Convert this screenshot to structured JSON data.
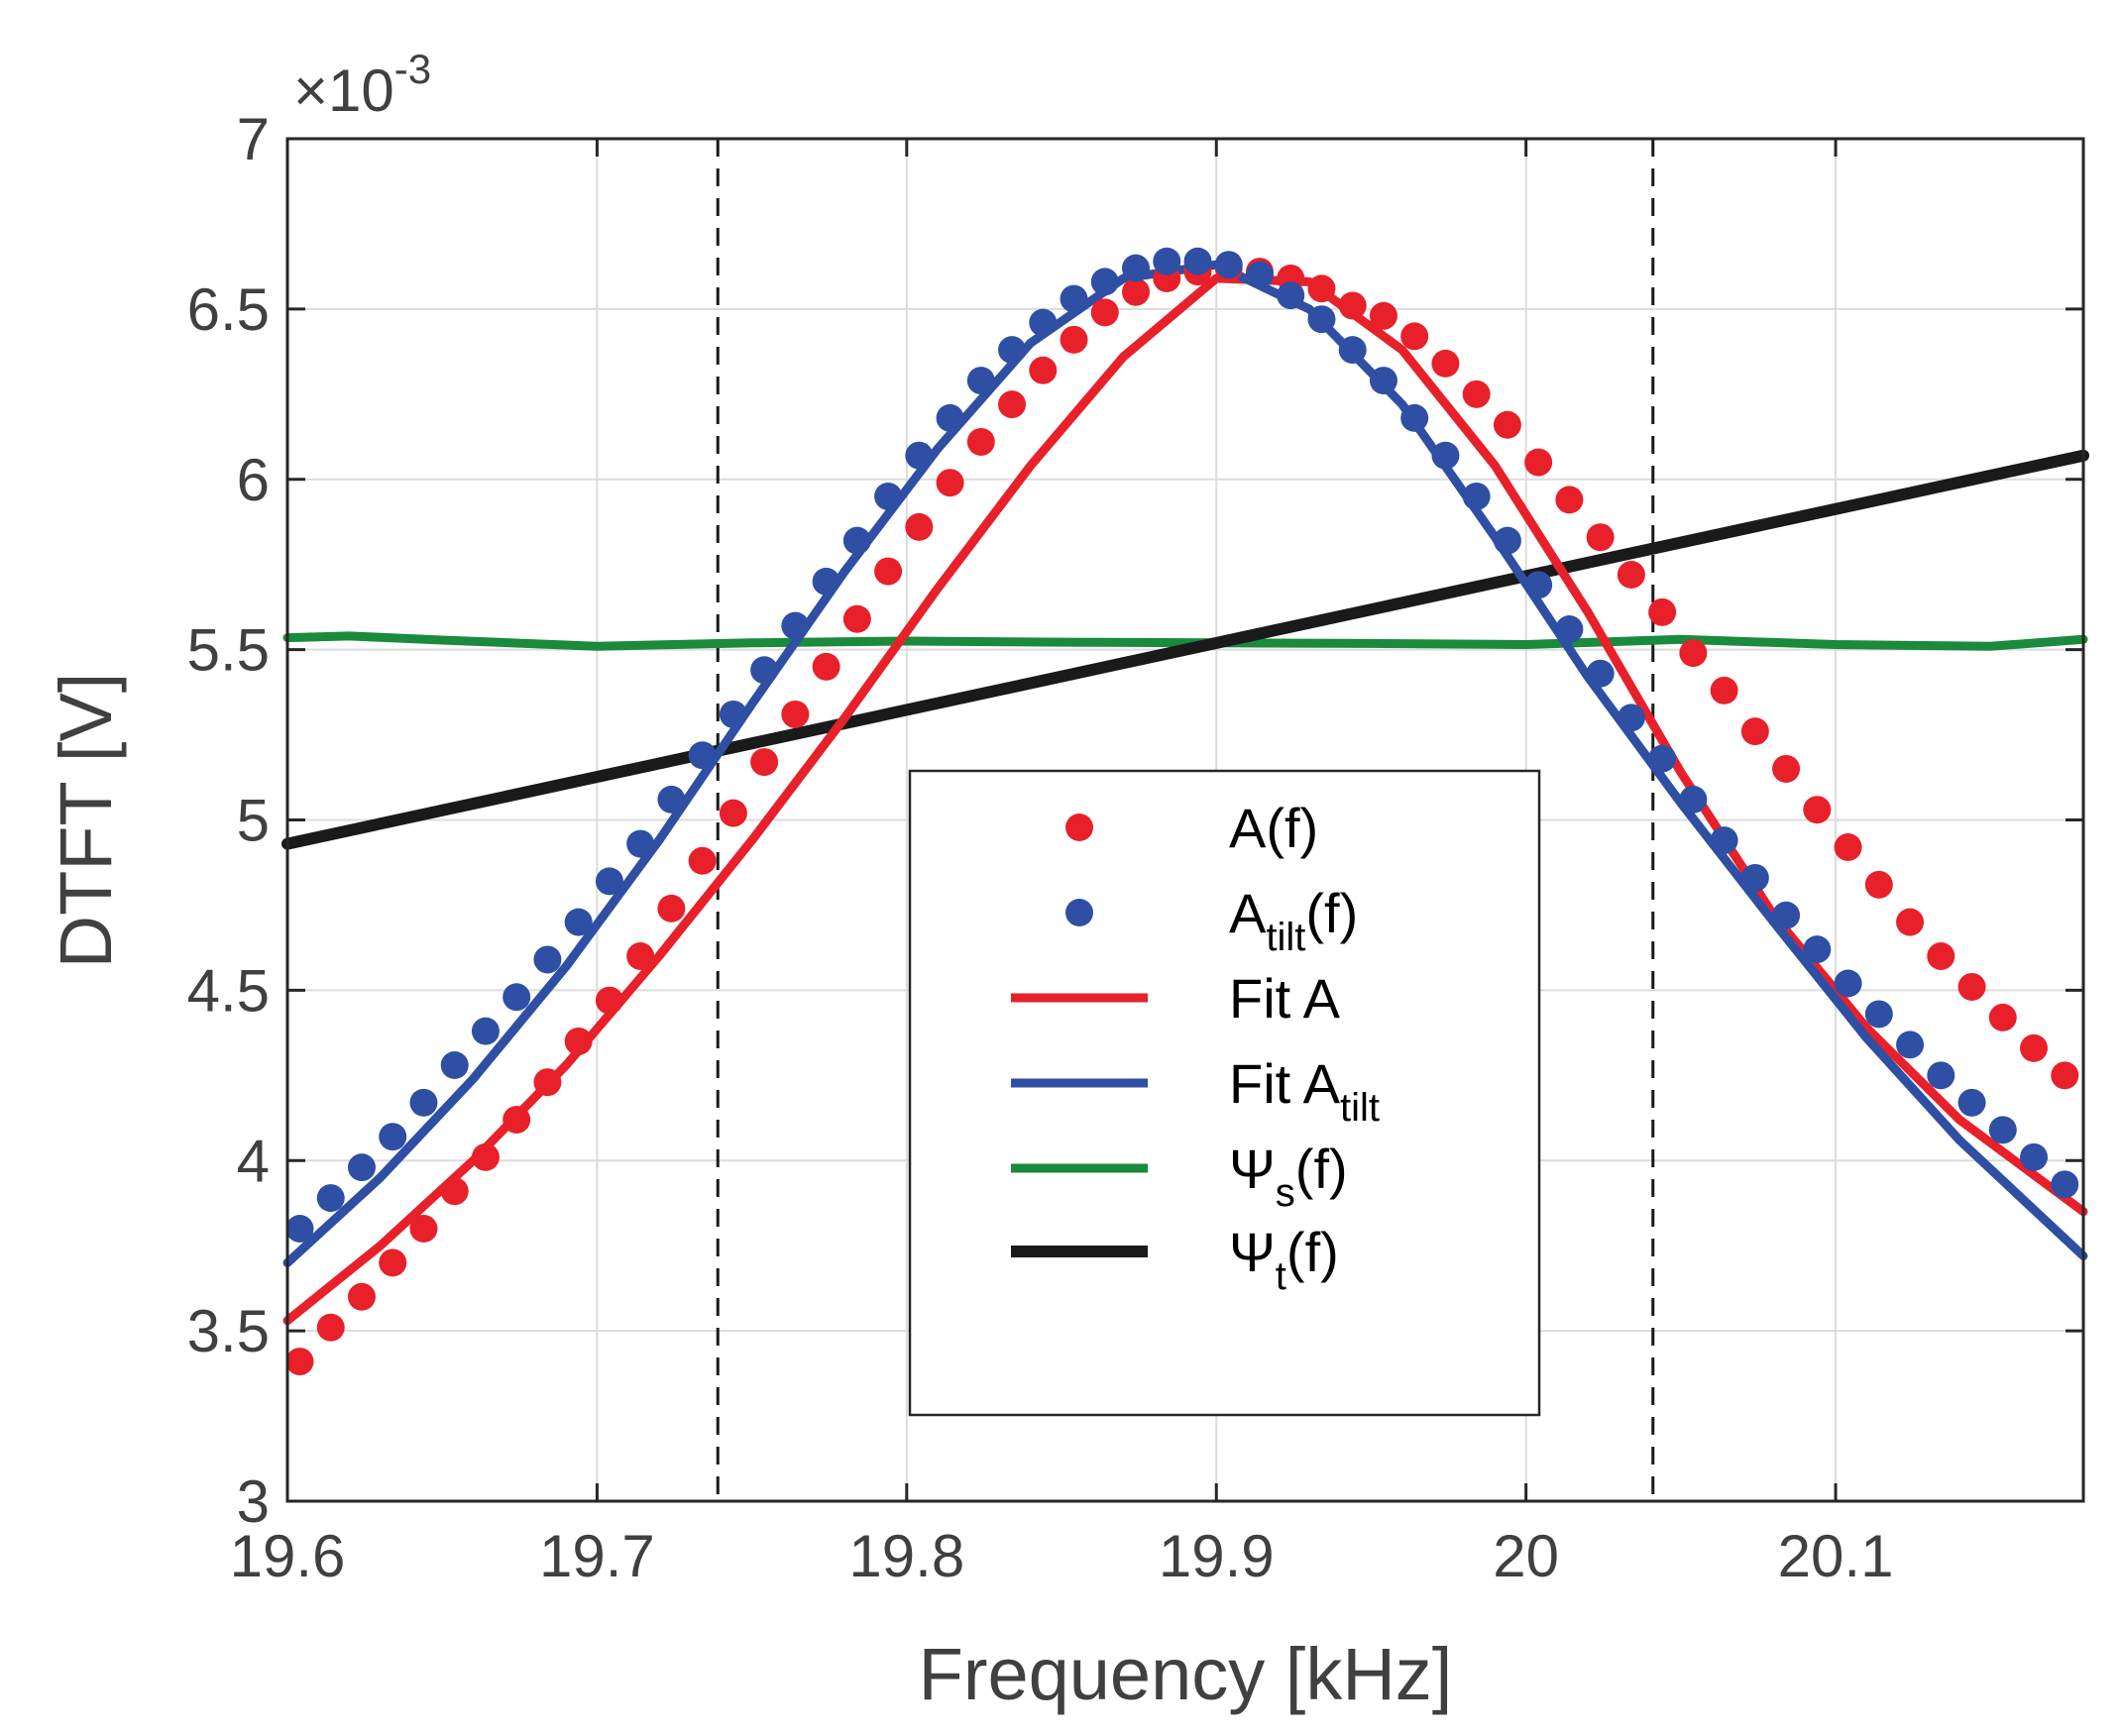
{
  "chart_data": {
    "type": "line",
    "title": "",
    "xlabel": "Frequency [kHz]",
    "ylabel": "DTFT [V]",
    "y_scale_prefix": "×10",
    "y_scale_exponent": "-3",
    "xlim": [
      19.6,
      20.18
    ],
    "ylim": [
      3,
      7
    ],
    "x_ticks": [
      19.6,
      19.7,
      19.8,
      19.9,
      20,
      20.1
    ],
    "x_tick_labels": [
      "19.6",
      "19.7",
      "19.8",
      "19.9",
      "20",
      "20.1"
    ],
    "y_ticks": [
      3,
      3.5,
      4,
      4.5,
      5,
      5.5,
      6,
      6.5,
      7
    ],
    "y_tick_labels": [
      "3",
      "3.5",
      "4",
      "4.5",
      "5",
      "5.5",
      "6",
      "6.5",
      "7"
    ],
    "grid": true,
    "legend_position": "center-bottom",
    "vertical_dashed_lines": [
      19.739,
      20.041
    ],
    "series": [
      {
        "name": "A(f)",
        "label_main": "A(f)",
        "label_sub": "",
        "label_tail": "",
        "style": "markers",
        "color": "#e8202a",
        "x": [
          19.604,
          19.614,
          19.624,
          19.634,
          19.644,
          19.654,
          19.664,
          19.674,
          19.684,
          19.694,
          19.704,
          19.714,
          19.724,
          19.734,
          19.744,
          19.754,
          19.764,
          19.774,
          19.784,
          19.794,
          19.804,
          19.814,
          19.824,
          19.834,
          19.844,
          19.854,
          19.864,
          19.874,
          19.884,
          19.894,
          19.904,
          19.914,
          19.924,
          19.934,
          19.944,
          19.954,
          19.964,
          19.974,
          19.984,
          19.994,
          20.004,
          20.014,
          20.024,
          20.034,
          20.044,
          20.054,
          20.064,
          20.074,
          20.084,
          20.094,
          20.104,
          20.114,
          20.124,
          20.134,
          20.144,
          20.154,
          20.164,
          20.174
        ],
        "values": [
          3.41,
          3.51,
          3.6,
          3.7,
          3.8,
          3.91,
          4.01,
          4.12,
          4.23,
          4.35,
          4.47,
          4.6,
          4.74,
          4.88,
          5.02,
          5.17,
          5.31,
          5.45,
          5.59,
          5.73,
          5.86,
          5.99,
          6.11,
          6.22,
          6.32,
          6.41,
          6.49,
          6.55,
          6.59,
          6.61,
          6.62,
          6.61,
          6.59,
          6.56,
          6.51,
          6.48,
          6.42,
          6.34,
          6.25,
          6.16,
          6.05,
          5.94,
          5.83,
          5.72,
          5.61,
          5.49,
          5.38,
          5.26,
          5.15,
          5.03,
          4.92,
          4.81,
          4.7,
          4.6,
          4.51,
          4.42,
          4.33,
          4.25
        ]
      },
      {
        "name": "A_tilt(f)",
        "label_main": "A",
        "label_sub": "tilt",
        "label_tail": "(f)",
        "style": "markers",
        "color": "#2e4fa3",
        "x": [
          19.604,
          19.614,
          19.624,
          19.634,
          19.644,
          19.654,
          19.664,
          19.674,
          19.684,
          19.694,
          19.704,
          19.714,
          19.724,
          19.734,
          19.744,
          19.754,
          19.764,
          19.774,
          19.784,
          19.794,
          19.804,
          19.814,
          19.824,
          19.834,
          19.844,
          19.854,
          19.864,
          19.874,
          19.884,
          19.894,
          19.904,
          19.914,
          19.924,
          19.934,
          19.944,
          19.954,
          19.964,
          19.974,
          19.984,
          19.994,
          20.004,
          20.014,
          20.024,
          20.034,
          20.044,
          20.054,
          20.064,
          20.074,
          20.084,
          20.094,
          20.104,
          20.114,
          20.124,
          20.134,
          20.144,
          20.154,
          20.164,
          20.174
        ],
        "values": [
          3.8,
          3.89,
          3.98,
          4.07,
          4.17,
          4.28,
          4.38,
          4.48,
          4.59,
          4.7,
          4.82,
          4.93,
          5.06,
          5.19,
          5.31,
          5.44,
          5.57,
          5.7,
          5.82,
          5.95,
          6.07,
          6.18,
          6.29,
          6.38,
          6.46,
          6.53,
          6.58,
          6.62,
          6.64,
          6.64,
          6.63,
          6.6,
          6.54,
          6.47,
          6.38,
          6.29,
          6.18,
          6.07,
          5.95,
          5.82,
          5.69,
          5.56,
          5.43,
          5.3,
          5.18,
          5.06,
          4.94,
          4.83,
          4.72,
          4.62,
          4.52,
          4.43,
          4.34,
          4.25,
          4.17,
          4.09,
          4.01,
          3.93
        ]
      },
      {
        "name": "Fit A",
        "label_main": "Fit A",
        "label_sub": "",
        "label_tail": "",
        "style": "line",
        "color": "#e8202a",
        "line_weight": "medium",
        "x": [
          19.6,
          19.63,
          19.66,
          19.69,
          19.72,
          19.75,
          19.78,
          19.81,
          19.84,
          19.87,
          19.9,
          19.93,
          19.96,
          19.99,
          20.02,
          20.05,
          20.08,
          20.11,
          20.14,
          20.18
        ],
        "values": [
          3.53,
          3.75,
          4.0,
          4.28,
          4.6,
          4.94,
          5.3,
          5.68,
          6.04,
          6.36,
          6.59,
          6.58,
          6.38,
          6.04,
          5.61,
          5.14,
          4.72,
          4.39,
          4.12,
          3.85
        ]
      },
      {
        "name": "Fit A_tilt",
        "label_main": "Fit A",
        "label_sub": "tilt",
        "label_tail": "",
        "style": "line",
        "color": "#2e4fa3",
        "line_weight": "medium",
        "x": [
          19.6,
          19.63,
          19.66,
          19.69,
          19.72,
          19.75,
          19.78,
          19.81,
          19.84,
          19.87,
          19.9,
          19.93,
          19.96,
          19.99,
          20.02,
          20.05,
          20.08,
          20.11,
          20.14,
          20.18
        ],
        "values": [
          3.7,
          3.95,
          4.24,
          4.57,
          4.94,
          5.34,
          5.73,
          6.09,
          6.4,
          6.59,
          6.63,
          6.5,
          6.22,
          5.83,
          5.42,
          5.05,
          4.7,
          4.36,
          4.06,
          3.72
        ]
      },
      {
        "name": "Ψ_s(f)",
        "label_main": "Ψ",
        "label_sub": "s",
        "label_tail": "(f)",
        "style": "line",
        "color": "#1a8a3c",
        "line_weight": "medium",
        "x": [
          19.6,
          19.62,
          19.65,
          19.7,
          19.75,
          19.8,
          19.85,
          19.9,
          19.95,
          20.0,
          20.05,
          20.1,
          20.15,
          20.18
        ],
        "values": [
          5.535,
          5.54,
          5.528,
          5.51,
          5.52,
          5.525,
          5.522,
          5.52,
          5.518,
          5.515,
          5.53,
          5.515,
          5.51,
          5.53
        ]
      },
      {
        "name": "Ψ_t(f)",
        "label_main": "Ψ",
        "label_sub": "t",
        "label_tail": "(f)",
        "style": "line",
        "color": "#1a1a1a",
        "line_weight": "thick",
        "x": [
          19.6,
          20.18
        ],
        "values": [
          4.93,
          6.07
        ]
      }
    ]
  }
}
